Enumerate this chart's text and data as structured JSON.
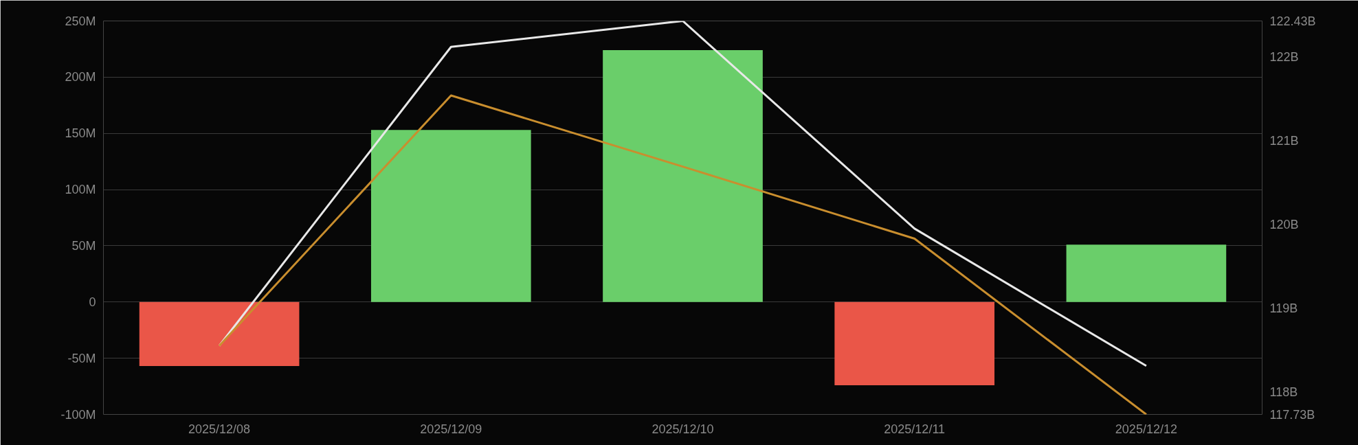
{
  "chart_data": {
    "type": "bar",
    "categories": [
      "2025/12/08",
      "2025/12/09",
      "2025/12/10",
      "2025/12/11",
      "2025/12/12"
    ],
    "series": [
      {
        "colors": [
          "#ea5648",
          "#6ace6a",
          "#6ace6a",
          "#ea5648",
          "#6ace6a"
        ],
        "values": [
          -57,
          153,
          224,
          -74,
          51
        ]
      },
      {
        "type": "line",
        "axis": "y2",
        "color": "#e8e8e8",
        "values": [
          118.55,
          122.12,
          122.43,
          119.95,
          118.31
        ]
      },
      {
        "type": "line",
        "axis": "y2",
        "color": "#c98e2e",
        "values": [
          118.55,
          121.54,
          120.69,
          119.83,
          117.73
        ]
      }
    ],
    "ylim": [
      -100,
      250
    ],
    "yticks": [
      {
        "value": -100,
        "label": "-100M"
      },
      {
        "value": -50,
        "label": "-50M"
      },
      0,
      {
        "value": 50,
        "label": "50M"
      },
      {
        "value": 100,
        "label": "100M"
      },
      {
        "value": 150,
        "label": "150M"
      },
      {
        "value": 200,
        "label": "200M"
      },
      {
        "value": 250,
        "label": "250M"
      }
    ],
    "y2lim": [
      117.73,
      122.43
    ],
    "y2ticks": [
      {
        "value": 117.73,
        "label": "117.73B"
      },
      {
        "value": 118,
        "label": "118B"
      },
      {
        "value": 119,
        "label": "119B"
      },
      {
        "value": 120,
        "label": "120B"
      },
      {
        "value": 121,
        "label": "121B"
      },
      {
        "value": 122,
        "label": "122B"
      },
      {
        "value": 122.43,
        "label": "122.43B"
      }
    ],
    "grid": "y"
  }
}
